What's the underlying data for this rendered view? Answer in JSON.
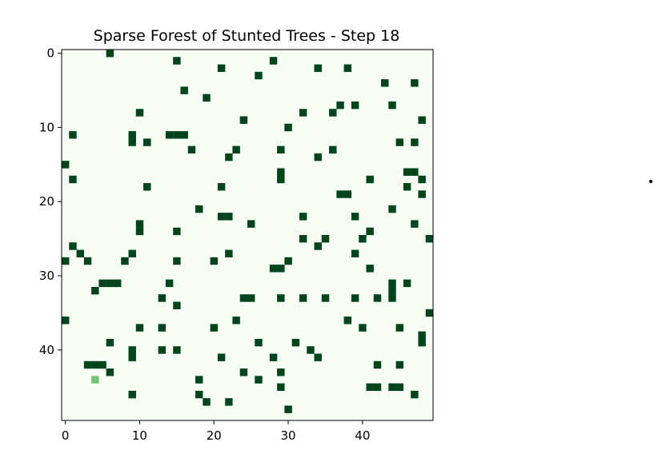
{
  "chart_data": {
    "type": "heatmap",
    "title": "Sparse Forest of Stunted Trees - Step 18",
    "xlabel": "",
    "ylabel": "",
    "grid_size": [
      50,
      50
    ],
    "xlim": [
      -0.5,
      49.5
    ],
    "ylim": [
      49.5,
      -0.5
    ],
    "x_ticks": [
      0,
      10,
      20,
      30,
      40
    ],
    "y_ticks": [
      0,
      10,
      20,
      30,
      40
    ],
    "colormap": "Greens",
    "colors": {
      "empty": "#f7fcf5",
      "tree": "#00441b",
      "sapling": "#74c476",
      "axis": "#000000",
      "background": "#ffffff"
    },
    "grid": false,
    "legend": "none",
    "cell_states": [
      "empty",
      "tree",
      "sapling"
    ],
    "trees": [
      [
        6,
        0
      ],
      [
        15,
        1
      ],
      [
        28,
        1
      ],
      [
        21,
        2
      ],
      [
        34,
        2
      ],
      [
        38,
        2
      ],
      [
        26,
        3
      ],
      [
        43,
        4
      ],
      [
        47,
        4
      ],
      [
        16,
        5
      ],
      [
        19,
        6
      ],
      [
        37,
        7
      ],
      [
        39,
        7
      ],
      [
        44,
        7
      ],
      [
        10,
        8
      ],
      [
        32,
        8
      ],
      [
        36,
        8
      ],
      [
        24,
        9
      ],
      [
        48,
        9
      ],
      [
        30,
        10
      ],
      [
        1,
        11
      ],
      [
        9,
        11
      ],
      [
        14,
        11
      ],
      [
        15,
        11
      ],
      [
        16,
        11
      ],
      [
        9,
        12
      ],
      [
        11,
        12
      ],
      [
        45,
        12
      ],
      [
        47,
        12
      ],
      [
        17,
        13
      ],
      [
        23,
        13
      ],
      [
        29,
        13
      ],
      [
        36,
        13
      ],
      [
        22,
        14
      ],
      [
        34,
        14
      ],
      [
        0,
        15
      ],
      [
        29,
        16
      ],
      [
        46,
        16
      ],
      [
        47,
        16
      ],
      [
        1,
        17
      ],
      [
        29,
        17
      ],
      [
        41,
        17
      ],
      [
        48,
        17
      ],
      [
        11,
        18
      ],
      [
        21,
        18
      ],
      [
        46,
        18
      ],
      [
        37,
        19
      ],
      [
        38,
        19
      ],
      [
        48,
        19
      ],
      [
        18,
        21
      ],
      [
        44,
        21
      ],
      [
        21,
        22
      ],
      [
        22,
        22
      ],
      [
        32,
        22
      ],
      [
        39,
        22
      ],
      [
        25,
        23
      ],
      [
        10,
        23
      ],
      [
        47,
        23
      ],
      [
        10,
        24
      ],
      [
        15,
        24
      ],
      [
        41,
        24
      ],
      [
        32,
        25
      ],
      [
        35,
        25
      ],
      [
        40,
        25
      ],
      [
        49,
        25
      ],
      [
        1,
        26
      ],
      [
        34,
        26
      ],
      [
        2,
        27
      ],
      [
        9,
        27
      ],
      [
        22,
        27
      ],
      [
        39,
        27
      ],
      [
        0,
        28
      ],
      [
        3,
        28
      ],
      [
        8,
        28
      ],
      [
        15,
        28
      ],
      [
        20,
        28
      ],
      [
        30,
        28
      ],
      [
        28,
        29
      ],
      [
        29,
        29
      ],
      [
        41,
        29
      ],
      [
        5,
        31
      ],
      [
        6,
        31
      ],
      [
        7,
        31
      ],
      [
        14,
        31
      ],
      [
        44,
        31
      ],
      [
        46,
        31
      ],
      [
        4,
        32
      ],
      [
        44,
        32
      ],
      [
        13,
        33
      ],
      [
        24,
        33
      ],
      [
        25,
        33
      ],
      [
        29,
        33
      ],
      [
        32,
        33
      ],
      [
        35,
        33
      ],
      [
        39,
        33
      ],
      [
        42,
        33
      ],
      [
        44,
        33
      ],
      [
        15,
        34
      ],
      [
        49,
        35
      ],
      [
        0,
        36
      ],
      [
        23,
        36
      ],
      [
        38,
        36
      ],
      [
        10,
        37
      ],
      [
        13,
        37
      ],
      [
        20,
        37
      ],
      [
        40,
        37
      ],
      [
        45,
        37
      ],
      [
        48,
        38
      ],
      [
        6,
        39
      ],
      [
        26,
        39
      ],
      [
        31,
        39
      ],
      [
        48,
        39
      ],
      [
        9,
        40
      ],
      [
        13,
        40
      ],
      [
        15,
        40
      ],
      [
        33,
        40
      ],
      [
        9,
        41
      ],
      [
        21,
        41
      ],
      [
        28,
        41
      ],
      [
        34,
        41
      ],
      [
        3,
        42
      ],
      [
        4,
        42
      ],
      [
        5,
        42
      ],
      [
        42,
        42
      ],
      [
        45,
        42
      ],
      [
        6,
        43
      ],
      [
        24,
        43
      ],
      [
        29,
        43
      ],
      [
        18,
        44
      ],
      [
        26,
        44
      ],
      [
        29,
        45
      ],
      [
        41,
        45
      ],
      [
        42,
        45
      ],
      [
        44,
        45
      ],
      [
        45,
        45
      ],
      [
        9,
        46
      ],
      [
        18,
        46
      ],
      [
        47,
        46
      ],
      [
        19,
        47
      ],
      [
        22,
        47
      ],
      [
        30,
        48
      ]
    ],
    "saplings": [
      [
        4,
        44
      ]
    ]
  }
}
